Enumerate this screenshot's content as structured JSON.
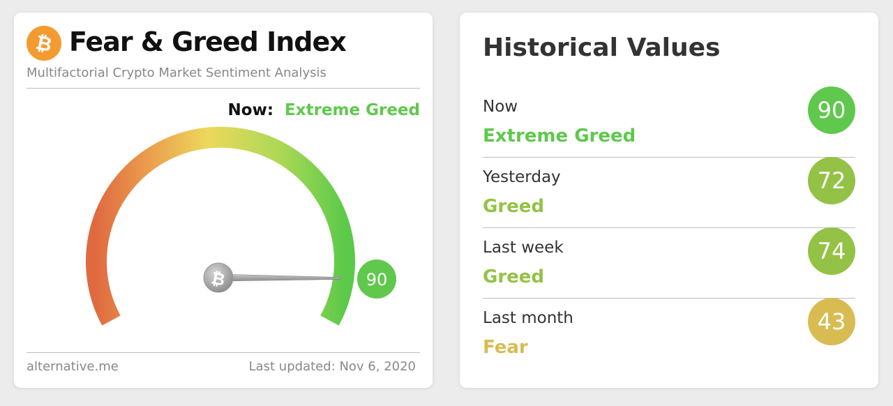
{
  "widget": {
    "title": "Fear & Greed Index",
    "subtitle": "Multifactorial Crypto Market Sentiment Analysis",
    "logo_icon": "bitcoin-icon",
    "now_label": "Now:",
    "now_classification": "Extreme Greed",
    "gauge_value": 90,
    "gauge_min": 0,
    "gauge_max": 100,
    "gauge_badge": "90",
    "footer_site": "alternative.me",
    "footer_updated": "Last updated: Nov 6, 2020",
    "accent_color": "#5fc84d"
  },
  "historical": {
    "title": "Historical Values",
    "rows": [
      {
        "label": "Now",
        "classification": "Extreme Greed",
        "value": "90",
        "color": "#5fc84d"
      },
      {
        "label": "Yesterday",
        "classification": "Greed",
        "value": "72",
        "color": "#94c246"
      },
      {
        "label": "Last week",
        "classification": "Greed",
        "value": "74",
        "color": "#94c246"
      },
      {
        "label": "Last month",
        "classification": "Fear",
        "value": "43",
        "color": "#d8bc52"
      }
    ]
  }
}
